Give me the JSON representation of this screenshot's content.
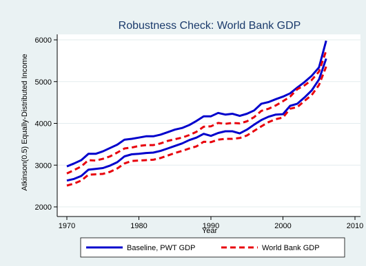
{
  "chart_data": {
    "type": "line",
    "title": "Robustness Check: World Bank GDP",
    "xlabel": "Year",
    "ylabel": "Atkinson(0.5) Equally-Distributed Income",
    "xlim": [
      1970,
      2010
    ],
    "ylim": [
      2000,
      6000
    ],
    "x_ticks": [
      1970,
      1980,
      1990,
      2000,
      2010
    ],
    "y_ticks": [
      2000,
      3000,
      4000,
      5000,
      6000
    ],
    "grid": true,
    "legend_position": "bottom",
    "series": [
      {
        "name": "Baseline, PWT GDP",
        "color": "#0000cc",
        "style": "solid",
        "x": [
          1970,
          1971,
          1972,
          1973,
          1974,
          1975,
          1976,
          1977,
          1978,
          1979,
          1980,
          1981,
          1982,
          1983,
          1984,
          1985,
          1986,
          1987,
          1988,
          1989,
          1990,
          1991,
          1992,
          1993,
          1994,
          1995,
          1996,
          1997,
          1998,
          1999,
          2000,
          2001,
          2002,
          2003,
          2004,
          2005,
          2006
        ],
        "y": [
          2970,
          3040,
          3120,
          3270,
          3270,
          3330,
          3410,
          3490,
          3610,
          3630,
          3660,
          3690,
          3690,
          3730,
          3790,
          3850,
          3890,
          3960,
          4060,
          4170,
          4170,
          4250,
          4210,
          4230,
          4180,
          4230,
          4310,
          4470,
          4510,
          4580,
          4640,
          4720,
          4860,
          4990,
          5140,
          5340,
          5980
        ]
      },
      {
        "name": "Baseline, PWT GDP",
        "color": "#0000cc",
        "style": "solid",
        "x": [
          1970,
          1971,
          1972,
          1973,
          1974,
          1975,
          1976,
          1977,
          1978,
          1979,
          1980,
          1981,
          1982,
          1983,
          1984,
          1985,
          1986,
          1987,
          1988,
          1989,
          1990,
          1991,
          1992,
          1993,
          1994,
          1995,
          1996,
          1997,
          1998,
          1999,
          2000,
          2001,
          2002,
          2003,
          2004,
          2005,
          2006
        ],
        "y": [
          2630,
          2670,
          2740,
          2890,
          2910,
          2930,
          2990,
          3070,
          3210,
          3260,
          3270,
          3290,
          3300,
          3340,
          3400,
          3460,
          3520,
          3600,
          3660,
          3750,
          3700,
          3770,
          3810,
          3810,
          3760,
          3850,
          3970,
          4080,
          4160,
          4210,
          4220,
          4420,
          4470,
          4620,
          4790,
          5050,
          5550
        ]
      },
      {
        "name": "World Bank GDP",
        "color": "#e8000b",
        "style": "dashed",
        "x": [
          1970,
          1971,
          1972,
          1973,
          1974,
          1975,
          1976,
          1977,
          1978,
          1979,
          1980,
          1981,
          1982,
          1983,
          1984,
          1985,
          1986,
          1987,
          1988,
          1989,
          1990,
          1991,
          1992,
          1993,
          1994,
          1995,
          1996,
          1997,
          1998,
          1999,
          2000,
          2001,
          2002,
          2003,
          2004,
          2005,
          2006
        ],
        "y": [
          2800,
          2880,
          2970,
          3120,
          3110,
          3150,
          3210,
          3300,
          3400,
          3420,
          3460,
          3480,
          3480,
          3520,
          3580,
          3620,
          3660,
          3720,
          3800,
          3920,
          3930,
          4010,
          3990,
          4010,
          4000,
          4050,
          4150,
          4300,
          4350,
          4430,
          4530,
          4640,
          4820,
          4910,
          5040,
          5240,
          5740
        ]
      },
      {
        "name": "World Bank GDP",
        "color": "#e8000b",
        "style": "dashed",
        "x": [
          1970,
          1971,
          1972,
          1973,
          1974,
          1975,
          1976,
          1977,
          1978,
          1979,
          1980,
          1981,
          1982,
          1983,
          1984,
          1985,
          1986,
          1987,
          1988,
          1989,
          1990,
          1991,
          1992,
          1993,
          1994,
          1995,
          1996,
          1997,
          1998,
          1999,
          2000,
          2001,
          2002,
          2003,
          2004,
          2005,
          2006
        ],
        "y": [
          2510,
          2560,
          2630,
          2770,
          2780,
          2790,
          2840,
          2920,
          3040,
          3100,
          3110,
          3120,
          3130,
          3170,
          3230,
          3290,
          3340,
          3400,
          3450,
          3560,
          3550,
          3610,
          3630,
          3630,
          3650,
          3710,
          3820,
          3930,
          4030,
          4100,
          4140,
          4350,
          4390,
          4540,
          4680,
          4920,
          5360
        ]
      }
    ]
  }
}
